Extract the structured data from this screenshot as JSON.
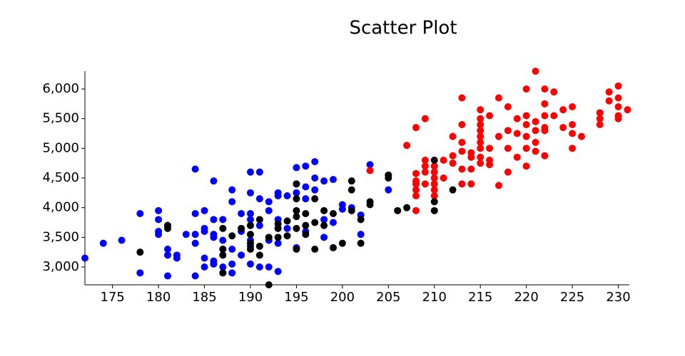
{
  "chart_data": {
    "type": "scatter",
    "title": "Scatter Plot",
    "xlim": [
      172,
      231.2
    ],
    "xticks": [
      175,
      180,
      185,
      190,
      195,
      200,
      205,
      210,
      215,
      220,
      225,
      230
    ],
    "ylim": [
      2700,
      6300
    ],
    "yticks": [
      {
        "value": 3000,
        "label": "3,000"
      },
      {
        "value": 3500,
        "label": "3,500"
      },
      {
        "value": 4000,
        "label": "4,000"
      },
      {
        "value": 4500,
        "label": "4,500"
      },
      {
        "value": 5000,
        "label": "5,000"
      },
      {
        "value": 5500,
        "label": "5,500"
      },
      {
        "value": 6000,
        "label": "6,000"
      }
    ],
    "series": [
      {
        "color": "#0000ff",
        "x": [
          172,
          174,
          176,
          178,
          178,
          180,
          180,
          180,
          180,
          181,
          181,
          181,
          181,
          182,
          182,
          183,
          184,
          184,
          184,
          184,
          184,
          185,
          185,
          185,
          185,
          185,
          186,
          186,
          186,
          186,
          186,
          186,
          187,
          187,
          187,
          187,
          188,
          188,
          188,
          188,
          188,
          189,
          189,
          189,
          190,
          190,
          190,
          190,
          190,
          190,
          190,
          190,
          191,
          191,
          191,
          191,
          192,
          192,
          192,
          192,
          193,
          193,
          193,
          193,
          193,
          194,
          194,
          195,
          195,
          195,
          195,
          196,
          196,
          196,
          196,
          197,
          197,
          197,
          198,
          198,
          198,
          199,
          199,
          200,
          200,
          201,
          202,
          202,
          203,
          205
        ],
        "values": [
          3150,
          3400,
          3450,
          3900,
          2900,
          3950,
          3800,
          3600,
          3550,
          3700,
          3200,
          3300,
          2850,
          3200,
          3150,
          3550,
          4650,
          3900,
          3550,
          3400,
          2850,
          3950,
          3650,
          3600,
          3150,
          3000,
          4450,
          3800,
          3550,
          3500,
          3100,
          3050,
          3800,
          3450,
          3300,
          3000,
          4300,
          4100,
          3300,
          3050,
          2900,
          3900,
          3600,
          3200,
          4600,
          4250,
          3900,
          3800,
          3700,
          3450,
          3350,
          3050,
          4600,
          4150,
          3700,
          3000,
          4100,
          3950,
          3450,
          3000,
          4250,
          4200,
          3800,
          3400,
          2925,
          4200,
          3650,
          4675,
          4400,
          4250,
          3325,
          4700,
          4350,
          4150,
          3600,
          4775,
          4500,
          4300,
          4450,
          3800,
          3500,
          4475,
          3750,
          4050,
          3975,
          4000,
          3875,
          3550,
          4725,
          4300
        ]
      },
      {
        "color": "#ff0000",
        "x": [
          203,
          207,
          208,
          208,
          208,
          208,
          208,
          208,
          208,
          209,
          209,
          209,
          209,
          209,
          210,
          210,
          210,
          210,
          210,
          210,
          211,
          211,
          212,
          212,
          212,
          213,
          213,
          213,
          213,
          213,
          213,
          214,
          214,
          214,
          214,
          215,
          215,
          215,
          215,
          215,
          215,
          215,
          215,
          215,
          216,
          216,
          216,
          216,
          217,
          217,
          217,
          218,
          218,
          218,
          218,
          219,
          219,
          219,
          220,
          220,
          220,
          220,
          220,
          220,
          221,
          221,
          221,
          221,
          221,
          222,
          222,
          222,
          222,
          222,
          222,
          223,
          223,
          224,
          224,
          225,
          225,
          225,
          225,
          226,
          228,
          228,
          228,
          229,
          229,
          230,
          230,
          230,
          230,
          230,
          231
        ],
        "values": [
          4625,
          5050,
          5350,
          4575,
          4450,
          4400,
          4300,
          4200,
          3950,
          5500,
          4800,
          4700,
          4600,
          4400,
          4700,
          4600,
          4500,
          4400,
          4300,
          4200,
          4800,
          4500,
          5200,
          4875,
          4750,
          5850,
          5400,
          5100,
          4950,
          4650,
          4400,
          4925,
          4850,
          4650,
          4400,
          5650,
          5500,
          5400,
          5300,
          5200,
          5100,
          5000,
          4850,
          4750,
          5550,
          5000,
          4800,
          4725,
          5850,
          5200,
          4375,
          5700,
          5300,
          5000,
          4600,
          5500,
          5250,
          4850,
          6000,
          5550,
          5400,
          5200,
          5000,
          4700,
          6300,
          5450,
          5300,
          5100,
          4950,
          6000,
          5750,
          5550,
          5350,
          5300,
          4875,
          5950,
          5550,
          5650,
          5350,
          5700,
          5400,
          5250,
          5000,
          5200,
          5600,
          5500,
          5400,
          5950,
          5800,
          6050,
          5850,
          5700,
          5550,
          5500,
          5650
        ]
      },
      {
        "color": "#000000",
        "x": [
          178,
          181,
          181,
          187,
          187,
          187,
          187,
          188,
          189,
          190,
          190,
          190,
          190,
          191,
          191,
          191,
          192,
          192,
          193,
          193,
          193,
          194,
          194,
          195,
          195,
          195,
          195,
          195,
          195,
          196,
          196,
          196,
          197,
          197,
          197,
          198,
          198,
          199,
          199,
          200,
          201,
          201,
          201,
          202,
          202,
          203,
          203,
          205,
          205,
          206,
          207,
          210,
          210,
          210,
          212
        ],
        "values": [
          3250,
          3700,
          3650,
          3650,
          3300,
          3200,
          2900,
          3525,
          3650,
          3700,
          3550,
          3400,
          3300,
          3800,
          3350,
          3200,
          2700,
          3500,
          3725,
          3650,
          3500,
          3775,
          3525,
          4400,
          4150,
          3950,
          3850,
          3650,
          3300,
          3900,
          3550,
          3700,
          4150,
          3750,
          3300,
          3950,
          3700,
          3900,
          3325,
          3400,
          4450,
          4300,
          3950,
          3800,
          3400,
          4100,
          4050,
          4550,
          4500,
          3950,
          4000,
          4800,
          4100,
          3950,
          4300
        ]
      }
    ]
  }
}
